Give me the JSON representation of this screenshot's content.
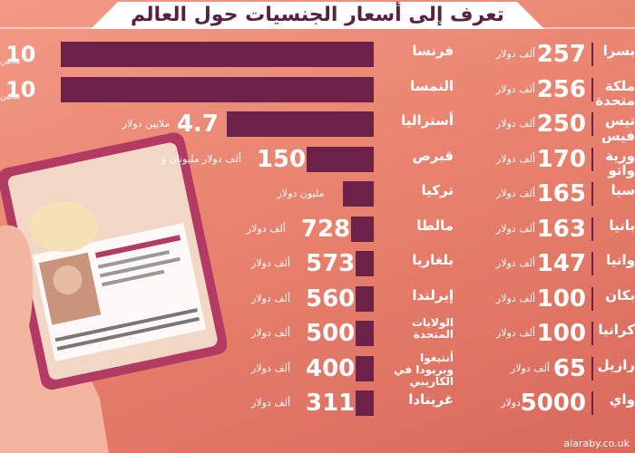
{
  "title": "تعرف إلى أسعار الجنسيات حول العالم",
  "source": "alaraby.co.uk",
  "colors": {
    "bar": "#6b2148",
    "background": "#e9836f",
    "title_text": "#5a1f45"
  },
  "chart_data": {
    "type": "bar",
    "left_panel": [
      {
        "country": "فرنسا",
        "value": "10",
        "unit": "ملايين",
        "amount_usd": 10000000
      },
      {
        "country": "النمسا",
        "value": "10",
        "unit": "ملايين",
        "amount_usd": 10000000
      },
      {
        "country": "أستراليا",
        "value": "4.7",
        "unit": "ملايين دولار",
        "amount_usd": 4700000
      },
      {
        "country": "قبرص",
        "value": "150",
        "unit": "ألف دولار",
        "prefix": "مليونان و",
        "amount_usd": 2150000
      },
      {
        "country": "تركيا",
        "value": "",
        "unit": "مليون دولار",
        "amount_usd": 1000000
      },
      {
        "country": "مالطا",
        "value": "728",
        "unit": "ألف دولار",
        "amount_usd": 728000
      },
      {
        "country": "بلغاريا",
        "value": "573",
        "unit": "ألف دولار",
        "amount_usd": 573000
      },
      {
        "country": "إيرلندا",
        "value": "560",
        "unit": "ألف دولار",
        "amount_usd": 560000
      },
      {
        "country": "الولايات المتحدة",
        "value": "500",
        "unit": "ألف دولار",
        "amount_usd": 500000
      },
      {
        "country": "أنتيغوا وبربودا في الكاريبي",
        "value": "400",
        "unit": "ألف دولار",
        "amount_usd": 400000
      },
      {
        "country": "غرينادا",
        "value": "311",
        "unit": "ألف دولار",
        "amount_usd": 311000
      }
    ],
    "right_panel": [
      {
        "country": "بسرا",
        "value": "257",
        "unit": "ألف دولار"
      },
      {
        "country": "ملكة متحدة",
        "value": "256",
        "unit": "ألف دولار"
      },
      {
        "country": "تيس فيس",
        "value": "250",
        "unit": "ألف دولار"
      },
      {
        "country": "ورية واتو",
        "value": "170",
        "unit": "ألف دولار"
      },
      {
        "country": "سيا",
        "value": "165",
        "unit": "ألف دولار"
      },
      {
        "country": "بانيا",
        "value": "163",
        "unit": "ألف دولار"
      },
      {
        "country": "وانيا",
        "value": "147",
        "unit": "ألف دولار"
      },
      {
        "country": "بكان",
        "value": "100",
        "unit": "ألف دولار"
      },
      {
        "country": "كرانيا",
        "value": "100",
        "unit": "ألف دولار"
      },
      {
        "country": "رازيل",
        "value": "65",
        "unit": "ألف دولار"
      },
      {
        "country": "واي",
        "value": "5000",
        "unit": "دولار"
      }
    ]
  }
}
